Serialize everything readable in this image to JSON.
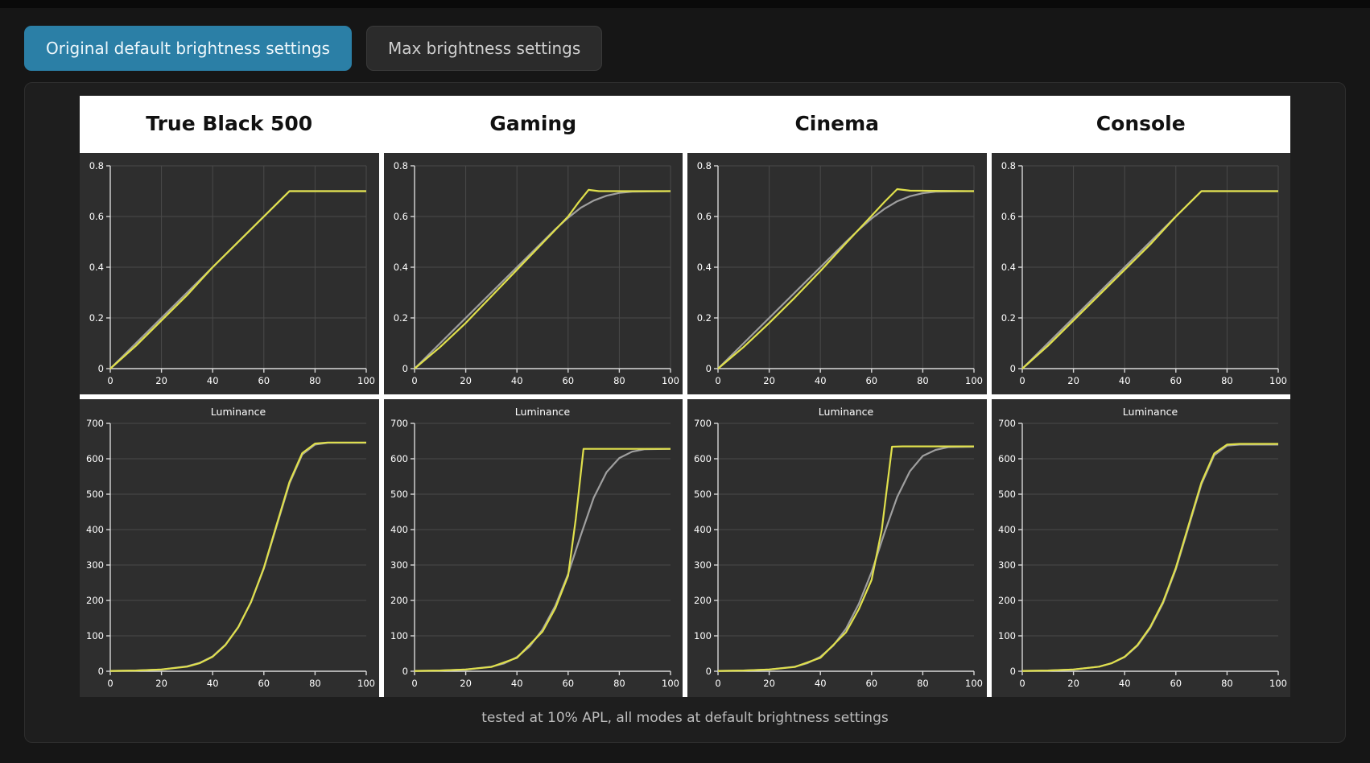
{
  "toolbar": {
    "buttons": [
      {
        "label": "Original default brightness settings",
        "active": true
      },
      {
        "label": "Max brightness settings",
        "active": false
      }
    ]
  },
  "headers": [
    "True Black 500",
    "Gaming",
    "Cinema",
    "Console"
  ],
  "panel": {
    "caption": "tested at 10% APL, all modes at default brightness settings"
  },
  "colors": {
    "measured": "#e0e04c",
    "target": "#9f9f9f",
    "active_tab": "#2b7fa6",
    "chart_bg": "#2e2e2e"
  },
  "chart_data": [
    {
      "type": "line",
      "row": "eotf",
      "name": "True Black 500",
      "xlim": [
        0,
        100
      ],
      "ylim": [
        0,
        0.8
      ],
      "xticks": [
        0,
        20,
        40,
        60,
        80,
        100
      ],
      "yticks": [
        0,
        0.2,
        0.4,
        0.6,
        0.8
      ],
      "grid_x": true,
      "grid_y": true,
      "series": [
        {
          "name": "target",
          "color": "#9f9f9f",
          "x": [
            0,
            70,
            100
          ],
          "y": [
            0,
            0.7,
            0.7
          ]
        },
        {
          "name": "measured",
          "color": "#e0e04c",
          "x": [
            0,
            10,
            20,
            30,
            40,
            50,
            60,
            70,
            100
          ],
          "y": [
            0,
            0.09,
            0.19,
            0.29,
            0.4,
            0.5,
            0.6,
            0.7,
            0.7
          ]
        }
      ]
    },
    {
      "type": "line",
      "row": "eotf",
      "name": "Gaming",
      "xlim": [
        0,
        100
      ],
      "ylim": [
        0,
        0.8
      ],
      "xticks": [
        0,
        20,
        40,
        60,
        80,
        100
      ],
      "yticks": [
        0,
        0.2,
        0.4,
        0.6,
        0.8
      ],
      "grid_x": true,
      "grid_y": true,
      "series": [
        {
          "name": "target",
          "color": "#9f9f9f",
          "x": [
            0,
            50,
            55,
            60,
            65,
            70,
            75,
            80,
            85,
            100
          ],
          "y": [
            0,
            0.5,
            0.55,
            0.595,
            0.635,
            0.663,
            0.682,
            0.693,
            0.698,
            0.7
          ]
        },
        {
          "name": "measured",
          "color": "#e0e04c",
          "x": [
            0,
            10,
            20,
            30,
            40,
            50,
            60,
            64,
            68,
            72,
            100
          ],
          "y": [
            0,
            0.085,
            0.18,
            0.285,
            0.39,
            0.495,
            0.6,
            0.655,
            0.705,
            0.7,
            0.7
          ]
        }
      ]
    },
    {
      "type": "line",
      "row": "eotf",
      "name": "Cinema",
      "xlim": [
        0,
        100
      ],
      "ylim": [
        0,
        0.8
      ],
      "xticks": [
        0,
        20,
        40,
        60,
        80,
        100
      ],
      "yticks": [
        0,
        0.2,
        0.4,
        0.6,
        0.8
      ],
      "grid_x": true,
      "grid_y": true,
      "series": [
        {
          "name": "target",
          "color": "#9f9f9f",
          "x": [
            0,
            50,
            55,
            60,
            65,
            70,
            75,
            80,
            85,
            100
          ],
          "y": [
            0,
            0.5,
            0.548,
            0.592,
            0.63,
            0.66,
            0.68,
            0.692,
            0.698,
            0.7
          ]
        },
        {
          "name": "measured",
          "color": "#e0e04c",
          "x": [
            0,
            10,
            20,
            30,
            40,
            50,
            60,
            65,
            70,
            75,
            100
          ],
          "y": [
            0,
            0.085,
            0.18,
            0.28,
            0.385,
            0.495,
            0.603,
            0.657,
            0.708,
            0.702,
            0.7
          ]
        }
      ]
    },
    {
      "type": "line",
      "row": "eotf",
      "name": "Console",
      "xlim": [
        0,
        100
      ],
      "ylim": [
        0,
        0.8
      ],
      "xticks": [
        0,
        20,
        40,
        60,
        80,
        100
      ],
      "yticks": [
        0,
        0.2,
        0.4,
        0.6,
        0.8
      ],
      "grid_x": true,
      "grid_y": true,
      "series": [
        {
          "name": "target",
          "color": "#9f9f9f",
          "x": [
            0,
            70,
            100
          ],
          "y": [
            0,
            0.7,
            0.7
          ]
        },
        {
          "name": "measured",
          "color": "#e0e04c",
          "x": [
            0,
            10,
            20,
            30,
            40,
            50,
            60,
            70,
            100
          ],
          "y": [
            0,
            0.09,
            0.19,
            0.29,
            0.39,
            0.49,
            0.6,
            0.7,
            0.7
          ]
        }
      ]
    },
    {
      "type": "line",
      "row": "luminance",
      "name": "True Black 500",
      "title": "Luminance",
      "xlim": [
        0,
        100
      ],
      "ylim": [
        0,
        700
      ],
      "xticks": [
        0,
        20,
        40,
        60,
        80,
        100
      ],
      "yticks": [
        0,
        100,
        200,
        300,
        400,
        500,
        600,
        700
      ],
      "grid_x": false,
      "grid_y": true,
      "series": [
        {
          "name": "target",
          "color": "#9f9f9f",
          "x": [
            0,
            10,
            20,
            30,
            35,
            40,
            45,
            50,
            55,
            60,
            65,
            70,
            75,
            80,
            85,
            100
          ],
          "y": [
            1,
            2,
            5,
            14,
            24,
            42,
            75,
            125,
            195,
            290,
            410,
            530,
            612,
            640,
            645,
            645
          ]
        },
        {
          "name": "measured",
          "color": "#e0e04c",
          "x": [
            0,
            10,
            20,
            30,
            35,
            40,
            45,
            50,
            55,
            60,
            65,
            70,
            75,
            80,
            85,
            100
          ],
          "y": [
            1,
            2,
            5,
            13,
            23,
            41,
            74,
            124,
            196,
            292,
            414,
            534,
            616,
            643,
            646,
            646
          ]
        }
      ]
    },
    {
      "type": "line",
      "row": "luminance",
      "name": "Gaming",
      "title": "Luminance",
      "xlim": [
        0,
        100
      ],
      "ylim": [
        0,
        700
      ],
      "xticks": [
        0,
        20,
        40,
        60,
        80,
        100
      ],
      "yticks": [
        0,
        100,
        200,
        300,
        400,
        500,
        600,
        700
      ],
      "grid_x": false,
      "grid_y": true,
      "series": [
        {
          "name": "target",
          "color": "#9f9f9f",
          "x": [
            0,
            10,
            20,
            30,
            35,
            40,
            45,
            50,
            55,
            60,
            65,
            70,
            75,
            80,
            85,
            90,
            100
          ],
          "y": [
            1,
            2,
            5,
            13,
            22,
            40,
            70,
            118,
            185,
            275,
            385,
            490,
            562,
            602,
            620,
            627,
            628
          ]
        },
        {
          "name": "measured",
          "color": "#e0e04c",
          "x": [
            0,
            10,
            20,
            30,
            40,
            50,
            55,
            60,
            63,
            66,
            70,
            100
          ],
          "y": [
            1,
            2,
            5,
            12,
            38,
            112,
            178,
            270,
            430,
            628,
            628,
            628
          ]
        }
      ]
    },
    {
      "type": "line",
      "row": "luminance",
      "name": "Cinema",
      "title": "Luminance",
      "xlim": [
        0,
        100
      ],
      "ylim": [
        0,
        700
      ],
      "xticks": [
        0,
        20,
        40,
        60,
        80,
        100
      ],
      "yticks": [
        0,
        100,
        200,
        300,
        400,
        500,
        600,
        700
      ],
      "grid_x": false,
      "grid_y": true,
      "series": [
        {
          "name": "target",
          "color": "#9f9f9f",
          "x": [
            0,
            10,
            20,
            30,
            35,
            40,
            45,
            50,
            55,
            60,
            65,
            70,
            75,
            80,
            85,
            90,
            100
          ],
          "y": [
            1,
            2,
            5,
            13,
            23,
            41,
            72,
            120,
            190,
            280,
            390,
            492,
            565,
            608,
            625,
            633,
            634
          ]
        },
        {
          "name": "measured",
          "color": "#e0e04c",
          "x": [
            0,
            10,
            20,
            30,
            40,
            50,
            55,
            60,
            64,
            68,
            72,
            100
          ],
          "y": [
            1,
            2,
            5,
            12,
            38,
            110,
            175,
            258,
            400,
            634,
            635,
            635
          ]
        }
      ]
    },
    {
      "type": "line",
      "row": "luminance",
      "name": "Console",
      "title": "Luminance",
      "xlim": [
        0,
        100
      ],
      "ylim": [
        0,
        700
      ],
      "xticks": [
        0,
        20,
        40,
        60,
        80,
        100
      ],
      "yticks": [
        0,
        100,
        200,
        300,
        400,
        500,
        600,
        700
      ],
      "grid_x": false,
      "grid_y": true,
      "series": [
        {
          "name": "target",
          "color": "#9f9f9f",
          "x": [
            0,
            10,
            20,
            30,
            35,
            40,
            45,
            50,
            55,
            60,
            65,
            70,
            75,
            80,
            85,
            100
          ],
          "y": [
            1,
            2,
            5,
            13,
            23,
            40,
            72,
            122,
            192,
            288,
            408,
            528,
            610,
            637,
            640,
            640
          ]
        },
        {
          "name": "measured",
          "color": "#e0e04c",
          "x": [
            0,
            10,
            20,
            30,
            35,
            40,
            45,
            50,
            55,
            60,
            65,
            70,
            75,
            80,
            85,
            100
          ],
          "y": [
            1,
            2,
            5,
            13,
            23,
            41,
            74,
            125,
            196,
            292,
            413,
            533,
            615,
            640,
            642,
            642
          ]
        }
      ]
    }
  ]
}
